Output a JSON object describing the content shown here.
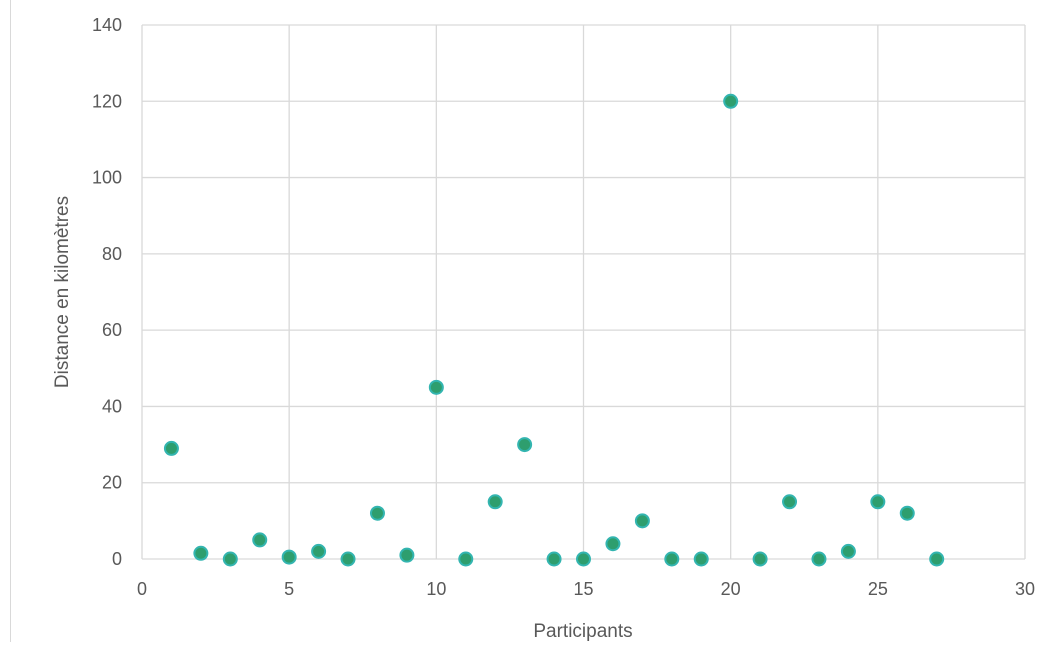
{
  "chart_data": {
    "type": "scatter",
    "title": "",
    "xlabel": "Participants",
    "ylabel": "Distance en kilomètres",
    "xlim": [
      0,
      30
    ],
    "ylim": [
      0,
      140
    ],
    "xticks": [
      0,
      5,
      10,
      15,
      20,
      25,
      30
    ],
    "yticks": [
      0,
      20,
      40,
      60,
      80,
      100,
      120,
      140
    ],
    "grid": true,
    "legend": "none",
    "colors": {
      "marker_fill": "#2e9e6e",
      "marker_edge": "#33b5b0",
      "grid": "#d9d9d9",
      "text": "#595959"
    },
    "series": [
      {
        "x": [
          1,
          2,
          3,
          4,
          5,
          6,
          7,
          8,
          9,
          10,
          11,
          12,
          13,
          14,
          15,
          16,
          17,
          18,
          19,
          20,
          21,
          22,
          23,
          24,
          25,
          26,
          27
        ],
        "y": [
          29,
          1.5,
          0,
          5,
          0.5,
          2,
          0,
          12,
          1,
          45,
          0,
          15,
          30,
          0,
          0,
          4,
          10,
          0,
          0,
          120,
          0,
          15,
          0,
          2,
          15,
          12,
          0
        ]
      }
    ]
  }
}
